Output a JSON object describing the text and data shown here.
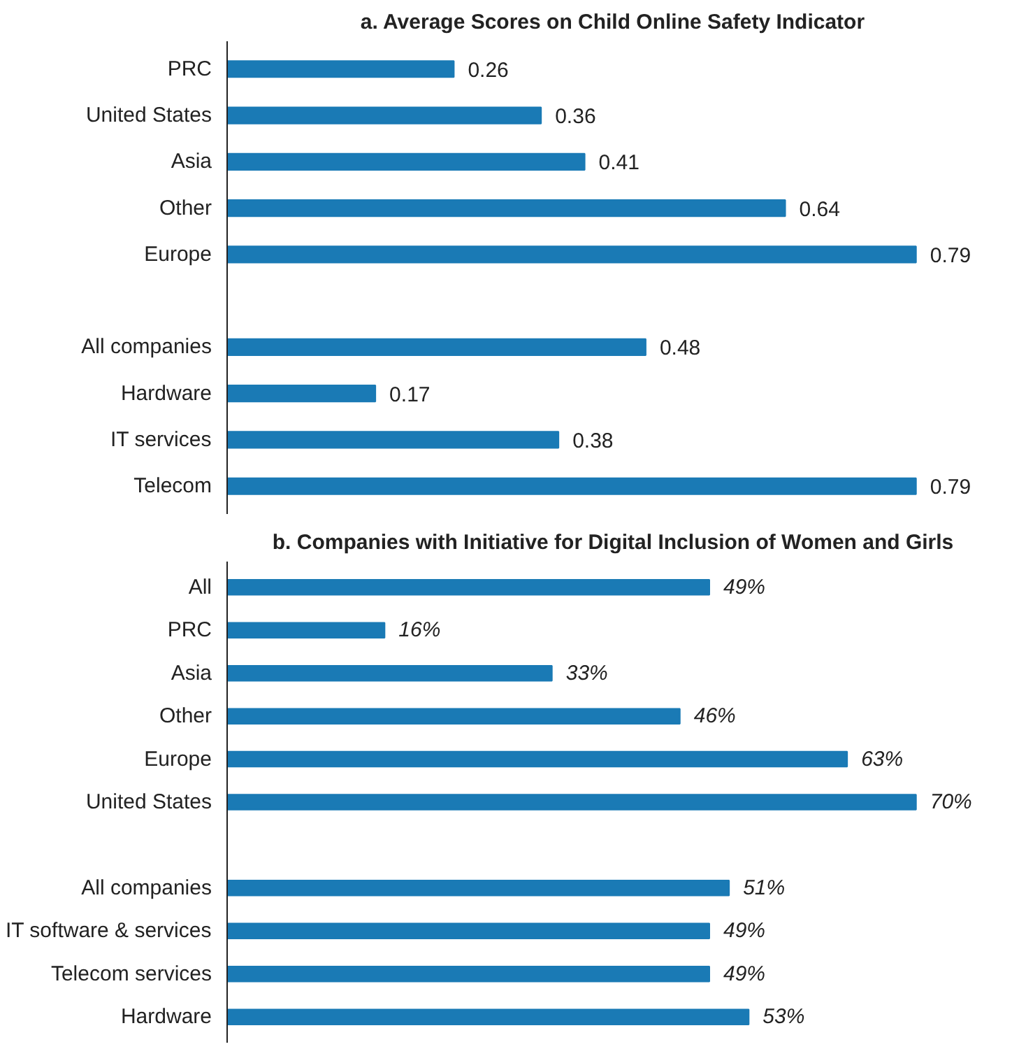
{
  "chart_data": [
    {
      "type": "bar",
      "orientation": "horizontal",
      "title": "a. Average Scores on Child Online Safety Indicator",
      "categories": [
        "PRC",
        "United States",
        "Asia",
        "Other",
        "Europe",
        null,
        "All companies",
        "Hardware",
        "IT services",
        "Telecom"
      ],
      "values": [
        0.26,
        0.36,
        0.41,
        0.64,
        0.79,
        null,
        0.48,
        0.17,
        0.38,
        0.79
      ],
      "color": "#1a7ab5",
      "data_labels": true
    },
    {
      "type": "bar",
      "orientation": "horizontal",
      "title": "b. Companies with Initiative for Digital Inclusion of Women and Girls",
      "categories": [
        "All",
        "PRC",
        "Asia",
        "Other",
        "Europe",
        "United States",
        null,
        "All companies",
        "IT software & services",
        "Telecom services",
        "Hardware"
      ],
      "values": [
        49,
        16,
        33,
        46,
        63,
        70,
        null,
        51,
        49,
        49,
        53
      ],
      "value_labels": [
        "49%",
        "16%",
        "33%",
        "46%",
        "63%",
        "70%",
        null,
        "51%",
        "49%",
        "49%",
        "53%"
      ],
      "color": "#1a7ab5"
    }
  ]
}
